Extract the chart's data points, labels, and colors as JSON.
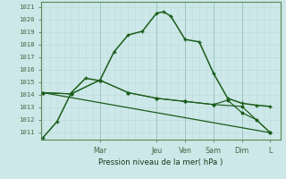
{
  "xlabel": "Pression niveau de la mer( hPa )",
  "background_color": "#cde8e8",
  "grid_color_minor": "#c0dada",
  "grid_color_major": "#a0c4c4",
  "line_color": "#1a5c1a",
  "ylim": [
    1010.4,
    1021.4
  ],
  "xlim": [
    -0.05,
    8.35
  ],
  "yticks": [
    1011,
    1012,
    1013,
    1014,
    1015,
    1016,
    1017,
    1018,
    1019,
    1020,
    1021
  ],
  "day_labels": [
    "Mar",
    "Jeu",
    "Ven",
    "Sam",
    "Dim",
    "L"
  ],
  "day_positions": [
    2,
    4,
    5,
    6,
    7,
    8
  ],
  "vline_positions": [
    2,
    4,
    5,
    6,
    7
  ],
  "series1_x": [
    0,
    0.5,
    1,
    1.5,
    2,
    2.5,
    3,
    3.5,
    4,
    4.25,
    4.5,
    5,
    5.5,
    6,
    6.5,
    7,
    7.5,
    8
  ],
  "series1_y": [
    1010.55,
    1011.85,
    1014.15,
    1015.3,
    1015.1,
    1017.4,
    1018.75,
    1019.05,
    1020.5,
    1020.6,
    1020.25,
    1018.4,
    1018.2,
    1015.7,
    1013.7,
    1013.3,
    1013.15,
    1013.05
  ],
  "series2_x": [
    0,
    1,
    2,
    3,
    4,
    5,
    6,
    7,
    8
  ],
  "series2_y": [
    1014.15,
    1014.05,
    1015.15,
    1014.15,
    1013.7,
    1013.45,
    1013.2,
    1013.05,
    1010.95
  ],
  "series3_x": [
    0,
    8
  ],
  "series3_y": [
    1014.15,
    1010.95
  ],
  "series4_x": [
    0,
    1,
    2,
    3,
    4,
    5,
    6,
    6.5,
    7,
    7.5,
    8
  ],
  "series4_y": [
    1014.15,
    1014.05,
    1015.15,
    1014.15,
    1013.7,
    1013.45,
    1013.2,
    1013.55,
    1012.55,
    1012.0,
    1010.95
  ]
}
